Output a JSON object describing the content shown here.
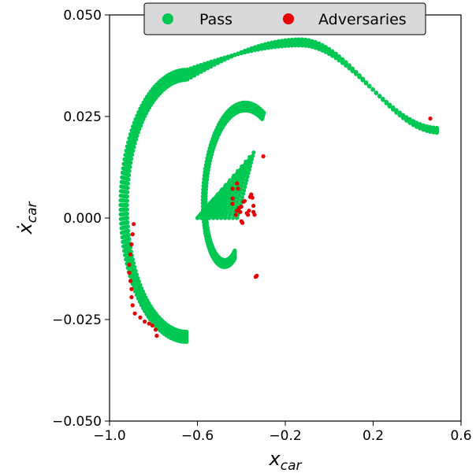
{
  "chart_data": {
    "type": "scatter",
    "title": "",
    "xlabel": "x",
    "xlabel_sub": "car",
    "ylabel": "ẋ",
    "ylabel_sub": "car",
    "xlim": [
      -1.0,
      0.6
    ],
    "ylim": [
      -0.05,
      0.05
    ],
    "x_ticks": [
      -1.0,
      -0.6,
      -0.2,
      0.2,
      0.6
    ],
    "x_tick_labels": [
      "−1.0",
      "−0.6",
      "−0.2",
      "0.2",
      "0.6"
    ],
    "y_ticks": [
      -0.05,
      -0.025,
      0.0,
      0.025,
      0.05
    ],
    "y_tick_labels": [
      "−0.050",
      "−0.025",
      "0.000",
      "0.025",
      "0.050"
    ],
    "grid": false,
    "legend": {
      "placement": "top-center",
      "entries": [
        {
          "label": "Pass",
          "color": "#00c853"
        },
        {
          "label": "Adversaries",
          "color": "#e60000"
        }
      ]
    },
    "series": [
      {
        "name": "Pass",
        "color": "#00c853",
        "spiral": {
          "description": "trajectory band",
          "trajectories": [
            {
              "start": [
                -0.6,
                0.0
              ],
              "v0": 0.0
            },
            {
              "start": [
                -0.58,
                0.0
              ],
              "v0": 0.0
            },
            {
              "start": [
                -0.56,
                0.0
              ],
              "v0": 0.0
            },
            {
              "start": [
                -0.54,
                0.0
              ],
              "v0": 0.0
            },
            {
              "start": [
                -0.52,
                0.0
              ],
              "v0": 0.0
            },
            {
              "start": [
                -0.5,
                0.0
              ],
              "v0": 0.0
            },
            {
              "start": [
                -0.48,
                0.0
              ],
              "v0": 0.0
            },
            {
              "start": [
                -0.46,
                0.0
              ],
              "v0": 0.0
            },
            {
              "start": [
                -0.44,
                0.0
              ],
              "v0": 0.0
            },
            {
              "start": [
                -0.42,
                0.0
              ],
              "v0": 0.0
            },
            {
              "start": [
                -0.4,
                0.0
              ],
              "v0": 0.0
            }
          ]
        }
      },
      {
        "name": "Adversaries",
        "color": "#e60000",
        "points": [
          [
            0.46,
            0.0245
          ],
          [
            -0.89,
            -0.0015
          ],
          [
            -0.895,
            -0.004
          ],
          [
            -0.9,
            -0.0065
          ],
          [
            -0.905,
            -0.009
          ],
          [
            -0.91,
            -0.0115
          ],
          [
            -0.91,
            -0.0135
          ],
          [
            -0.905,
            -0.0155
          ],
          [
            -0.9,
            -0.0175
          ],
          [
            -0.9,
            -0.0195
          ],
          [
            -0.895,
            -0.0215
          ],
          [
            -0.885,
            -0.0235
          ],
          [
            -0.86,
            -0.0245
          ],
          [
            -0.84,
            -0.0255
          ],
          [
            -0.82,
            -0.026
          ],
          [
            -0.805,
            -0.0265
          ],
          [
            -0.79,
            -0.0275
          ],
          [
            -0.785,
            -0.029
          ],
          [
            -0.335,
            -0.0145
          ],
          [
            -0.33,
            -0.0142
          ],
          [
            -0.3,
            0.0152
          ],
          [
            -0.44,
            0.0072
          ],
          [
            -0.44,
            0.0048
          ],
          [
            -0.44,
            0.0035
          ],
          [
            -0.42,
            0.0085
          ],
          [
            -0.415,
            0.0072
          ],
          [
            -0.42,
            0.0018
          ],
          [
            -0.425,
            0.0008
          ],
          [
            -0.4,
            -0.0008
          ],
          [
            -0.395,
            -0.0012
          ],
          [
            -0.375,
            0.0012
          ],
          [
            -0.37,
            0.0008
          ],
          [
            -0.365,
            0.0018
          ],
          [
            -0.36,
            0.0052
          ],
          [
            -0.355,
            0.0058
          ],
          [
            -0.35,
            0.005
          ],
          [
            -0.345,
            0.003
          ],
          [
            -0.345,
            0.0015
          ],
          [
            -0.34,
            0.0008
          ],
          [
            -0.385,
            0.0042
          ],
          [
            -0.39,
            0.004
          ],
          [
            -0.4,
            0.0028
          ],
          [
            -0.41,
            0.0025
          ],
          [
            -0.405,
            0.0015
          ]
        ]
      }
    ]
  }
}
